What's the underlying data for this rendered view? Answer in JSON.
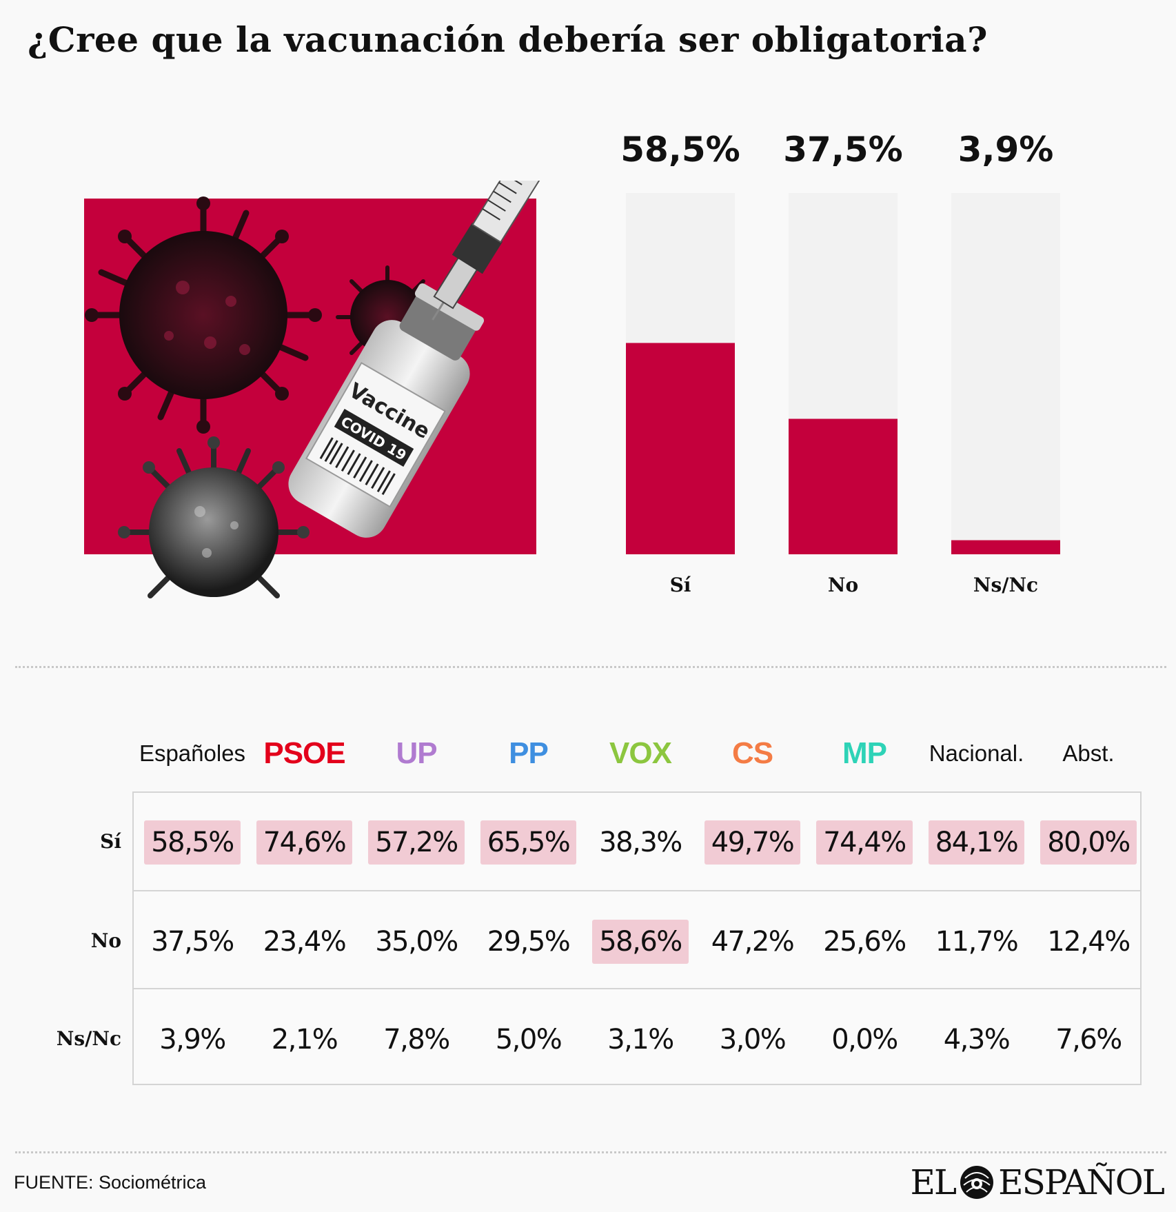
{
  "title": "¿Cree que la vacunación debería ser obligatoria?",
  "illustration": {
    "vial_label": "Vaccine",
    "vial_sublabel": "COVID 19"
  },
  "chart_data": {
    "type": "bar",
    "title": "¿Cree que la vacunación debería ser obligatoria?",
    "categories": [
      "Sí",
      "No",
      "Ns/Nc"
    ],
    "values": [
      58.5,
      37.5,
      3.9
    ],
    "value_labels": [
      "58,5%",
      "37,5%",
      "3,9%"
    ],
    "ylim": [
      0,
      100
    ],
    "xlabel": "",
    "ylabel": "",
    "colors": {
      "fill": "#c4003c",
      "track": "#f2f2f2"
    }
  },
  "table": {
    "columns": [
      {
        "label": "Españoles",
        "color": "#111111",
        "party": false
      },
      {
        "label": "PSOE",
        "color": "#e3001b",
        "party": true
      },
      {
        "label": "UP",
        "color": "#b07bd0",
        "party": true
      },
      {
        "label": "PP",
        "color": "#3f8fe0",
        "party": true
      },
      {
        "label": "VOX",
        "color": "#8cc63f",
        "party": true
      },
      {
        "label": "CS",
        "color": "#f47c45",
        "party": true
      },
      {
        "label": "MP",
        "color": "#2ed3b7",
        "party": true
      },
      {
        "label": "Nacional.",
        "color": "#111111",
        "party": false
      },
      {
        "label": "Abst.",
        "color": "#111111",
        "party": false
      }
    ],
    "rows": [
      {
        "label": "Sí",
        "cells": [
          {
            "v": "58,5%",
            "hl": true
          },
          {
            "v": "74,6%",
            "hl": true
          },
          {
            "v": "57,2%",
            "hl": true
          },
          {
            "v": "65,5%",
            "hl": true
          },
          {
            "v": "38,3%",
            "hl": false
          },
          {
            "v": "49,7%",
            "hl": true
          },
          {
            "v": "74,4%",
            "hl": true
          },
          {
            "v": "84,1%",
            "hl": true
          },
          {
            "v": "80,0%",
            "hl": true
          }
        ]
      },
      {
        "label": "No",
        "cells": [
          {
            "v": "37,5%",
            "hl": false
          },
          {
            "v": "23,4%",
            "hl": false
          },
          {
            "v": "35,0%",
            "hl": false
          },
          {
            "v": "29,5%",
            "hl": false
          },
          {
            "v": "58,6%",
            "hl": true
          },
          {
            "v": "47,2%",
            "hl": false
          },
          {
            "v": "25,6%",
            "hl": false
          },
          {
            "v": "11,7%",
            "hl": false
          },
          {
            "v": "12,4%",
            "hl": false
          }
        ]
      },
      {
        "label": "Ns/Nc",
        "cells": [
          {
            "v": "3,9%",
            "hl": false
          },
          {
            "v": "2,1%",
            "hl": false
          },
          {
            "v": "7,8%",
            "hl": false
          },
          {
            "v": "5,0%",
            "hl": false
          },
          {
            "v": "3,1%",
            "hl": false
          },
          {
            "v": "3,0%",
            "hl": false
          },
          {
            "v": "0,0%",
            "hl": false
          },
          {
            "v": "4,3%",
            "hl": false
          },
          {
            "v": "7,6%",
            "hl": false
          }
        ]
      }
    ]
  },
  "footer": {
    "source": "FUENTE: Sociométrica",
    "logo_left": "EL",
    "logo_right": "ESPAÑOL"
  }
}
